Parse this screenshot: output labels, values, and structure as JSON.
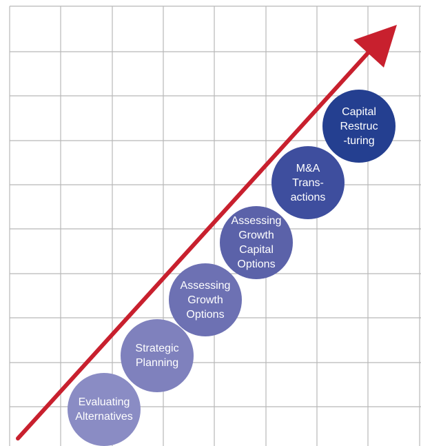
{
  "diagram": {
    "grid_color": "#b7b7b7",
    "arrow_color": "#c8202e",
    "circles": [
      {
        "id": "evaluating-alternatives",
        "label": "Evaluating\nAlternatives",
        "color": "#8a8cc4"
      },
      {
        "id": "strategic-planning",
        "label": "Strategic\nPlanning",
        "color": "#7f81bd"
      },
      {
        "id": "assessing-growth-options",
        "label": "Assessing\nGrowth\nOptions",
        "color": "#6d71b3"
      },
      {
        "id": "assessing-growth-capital-options",
        "label": "Assessing\nGrowth\nCapital\nOptions",
        "color": "#5b62a9"
      },
      {
        "id": "ma-transactions",
        "label": "M&A\nTrans-\nactions",
        "color": "#3e4e9e"
      },
      {
        "id": "capital-restructuring",
        "label": "Capital\nRestruc\n-turing",
        "color": "#243f90"
      }
    ]
  }
}
